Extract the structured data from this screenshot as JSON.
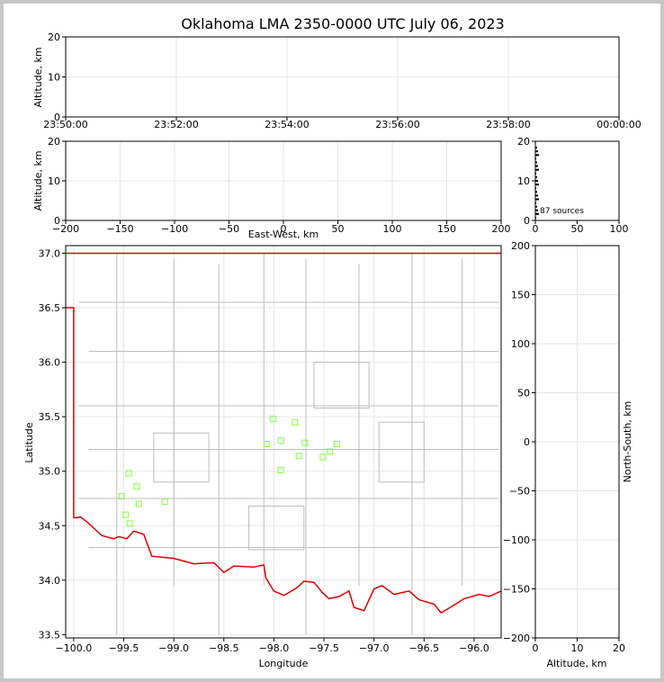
{
  "title": "Oklahoma LMA 2350-0000 UTC July 06, 2023",
  "colors": {
    "state_border": "#e00000",
    "county_lines": "#bdbdbd",
    "source_marker": "#80ff40",
    "grid": "#e6e6e6"
  },
  "chart_data": [
    {
      "type": "scatter",
      "panel": "altitude-vs-time",
      "ylabel": "Altitude, km",
      "ylim": [
        0,
        20
      ],
      "yticks": [
        "0",
        "10",
        "20"
      ],
      "xticks": [
        "23:50:00",
        "23:52:00",
        "23:54:00",
        "23:56:00",
        "23:58:00",
        "00:00:00"
      ],
      "grid": true
    },
    {
      "type": "scatter",
      "panel": "altitude-vs-east-west",
      "xlabel": "East-West, km",
      "ylabel": "Altitude, km",
      "xlim": [
        -200,
        200
      ],
      "ylim": [
        0,
        20
      ],
      "xticks": [
        "−200",
        "−150",
        "−100",
        "−50",
        "0",
        "50",
        "100",
        "150",
        "200"
      ],
      "yticks": [
        "0",
        "10",
        "20"
      ],
      "grid": true
    },
    {
      "type": "histogram",
      "panel": "altitude-histogram",
      "xlim": [
        0,
        100
      ],
      "ylim": [
        0,
        20
      ],
      "xticks": [
        "0",
        "50",
        "100"
      ],
      "yticks": [
        "0",
        "10",
        "20"
      ],
      "annotation": "87 sources"
    },
    {
      "type": "scatter",
      "panel": "plan-view",
      "xlabel": "Longitude",
      "ylabel": "Latitude",
      "xlim": [
        -100.08,
        -95.73
      ],
      "ylim": [
        33.47,
        37.07
      ],
      "xticks": [
        "−100.0",
        "−99.5",
        "−99.0",
        "−98.5",
        "−98.0",
        "−97.5",
        "−97.0",
        "−96.5",
        "−96.0"
      ],
      "yticks": [
        "33.5",
        "34.0",
        "34.5",
        "35.0",
        "35.5",
        "36.0",
        "36.5",
        "37.0"
      ],
      "grid": true,
      "points": [
        {
          "x": -99.45,
          "y": 34.98
        },
        {
          "x": -99.37,
          "y": 34.86
        },
        {
          "x": -99.52,
          "y": 34.77
        },
        {
          "x": -99.35,
          "y": 34.7
        },
        {
          "x": -99.48,
          "y": 34.6
        },
        {
          "x": -99.44,
          "y": 34.52
        },
        {
          "x": -99.09,
          "y": 34.72
        },
        {
          "x": -98.07,
          "y": 35.25
        },
        {
          "x": -98.01,
          "y": 35.48
        },
        {
          "x": -97.93,
          "y": 35.28
        },
        {
          "x": -97.93,
          "y": 35.01
        },
        {
          "x": -97.79,
          "y": 35.45
        },
        {
          "x": -97.75,
          "y": 35.14
        },
        {
          "x": -97.69,
          "y": 35.26
        },
        {
          "x": -97.51,
          "y": 35.13
        },
        {
          "x": -97.44,
          "y": 35.18
        },
        {
          "x": -97.37,
          "y": 35.25
        }
      ]
    },
    {
      "type": "scatter",
      "panel": "north-south-vs-altitude",
      "xlabel": "Altitude, km",
      "ylabel": "North-South, km",
      "xlim": [
        0,
        20
      ],
      "ylim": [
        -200,
        200
      ],
      "xticks": [
        "0",
        "10",
        "20"
      ],
      "yticks": [
        "−200",
        "−150",
        "−100",
        "−50",
        "0",
        "50",
        "100",
        "150",
        "200"
      ],
      "grid": true
    }
  ]
}
